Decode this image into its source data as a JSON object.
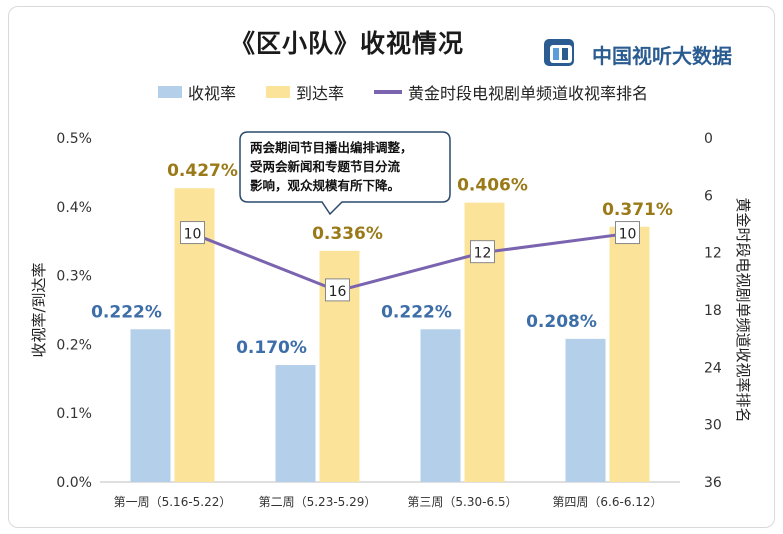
{
  "header": {
    "title": "《区小队》收视情况",
    "brand": "中国视听大数据"
  },
  "chart_data": {
    "type": "bar",
    "categories": [
      "第一周（5.16-5.22）",
      "第二周（5.23-5.29）",
      "第三周（5.30-6.5）",
      "第四周（6.6-6.12）"
    ],
    "series": [
      {
        "name": "收视率",
        "kind": "bar",
        "axis": "left",
        "values": [
          0.222,
          0.17,
          0.222,
          0.208
        ],
        "labels": [
          "0.222%",
          "0.170%",
          "0.222%",
          "0.208%"
        ],
        "color": "#b4cfe9",
        "label_color": "#3d6ea8"
      },
      {
        "name": "到达率",
        "kind": "bar",
        "axis": "left",
        "values": [
          0.427,
          0.336,
          0.406,
          0.371
        ],
        "labels": [
          "0.427%",
          "0.336%",
          "0.406%",
          "0.371%"
        ],
        "color": "#fbe49a",
        "label_color": "#9a7a18"
      },
      {
        "name": "黄金时段电视剧单频道收视率排名",
        "kind": "line",
        "axis": "right",
        "values": [
          10,
          16,
          12,
          10
        ],
        "labels": [
          "10",
          "16",
          "12",
          "10"
        ],
        "color": "#7a64b0"
      }
    ],
    "ylabel": "收视率/到达率",
    "y2label": "黄金时段电视剧单频道收视率排名",
    "ylim": [
      0,
      0.5
    ],
    "yticks": [
      0,
      0.1,
      0.2,
      0.3,
      0.4,
      0.5
    ],
    "ytick_labels": [
      "0.0%",
      "0.1%",
      "0.2%",
      "0.3%",
      "0.4%",
      "0.5%"
    ],
    "y2lim": [
      0,
      36
    ],
    "y2_inverted": true,
    "y2ticks": [
      0,
      6,
      12,
      18,
      24,
      30,
      36
    ],
    "y2tick_labels": [
      "0",
      "6",
      "12",
      "18",
      "24",
      "30",
      "36"
    ],
    "grid": false,
    "legend": "top",
    "annotation": {
      "lines": [
        "两会期间节目播出编排调整，",
        "受两会新闻和专题节目分流",
        "影响，观众规模有所下降。"
      ],
      "points_to": "第二周（5.23-5.29）"
    }
  }
}
